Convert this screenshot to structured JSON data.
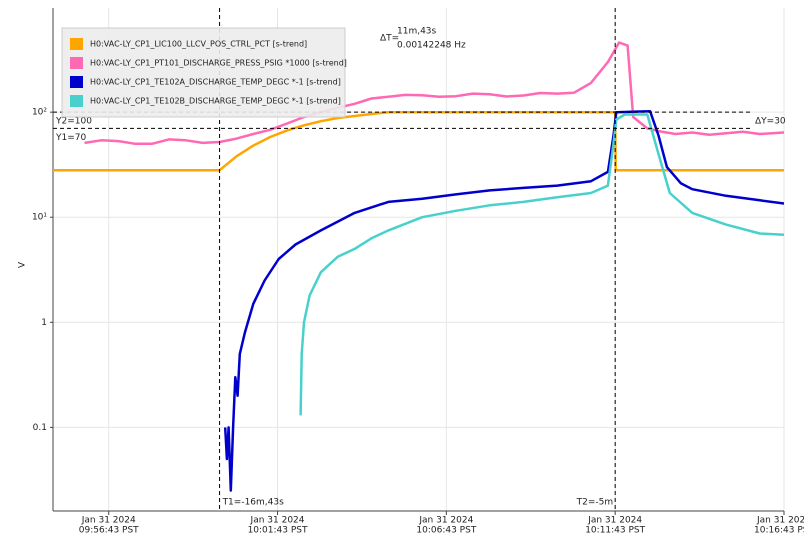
{
  "chart_data": {
    "type": "line",
    "y_label": "V",
    "log_y": true,
    "grid": true,
    "xlim": [
      "09:55:04",
      "10:16:43"
    ],
    "xticks": [
      {
        "value": "09:56:43",
        "label": [
          "Jan 31 2024",
          "09:56:43 PST"
        ]
      },
      {
        "value": "10:01:43",
        "label": [
          "Jan 31 2024",
          "10:01:43 PST"
        ]
      },
      {
        "value": "10:06:43",
        "label": [
          "Jan 31 2024",
          "10:06:43 PST"
        ]
      },
      {
        "value": "10:11:43",
        "label": [
          "Jan 31 2024",
          "10:11:43 PST"
        ]
      },
      {
        "value": "10:16:43",
        "label": [
          "Jan 31 2024",
          "10:16:43 PST"
        ]
      }
    ],
    "ylim": [
      0.016,
      980
    ],
    "yticks": [
      {
        "value": 100,
        "label": "10²"
      },
      {
        "value": 10,
        "label": "10¹"
      },
      1,
      0.1
    ],
    "series": [
      {
        "name": "H0:VAC-LY_CP1_LIC100_LLCV_POS_CTRL_PCT [s-trend]",
        "color": "#FFA500",
        "x": [
          "09:55:04",
          "10:00:00",
          "10:00:30",
          "10:01:00",
          "10:01:30",
          "10:02:00",
          "10:02:30",
          "10:03:00",
          "10:03:30",
          "10:04:00",
          "10:04:30",
          "10:05:00",
          "10:11:43",
          "10:11:44",
          "10:16:43"
        ],
        "values": [
          28,
          28,
          38,
          48,
          58,
          67,
          75,
          82,
          88,
          92,
          96,
          100,
          100,
          28,
          28
        ]
      },
      {
        "name": "H0:VAC-LY_CP1_PT101_DISCHARGE_PRESS_PSIG *1000 [s-trend]",
        "color": "#FF69B4",
        "x": [
          "09:56:00",
          "09:56:30",
          "09:57:00",
          "09:57:30",
          "09:58:00",
          "09:58:30",
          "09:59:00",
          "09:59:30",
          "10:00:00",
          "10:00:30",
          "10:01:00",
          "10:01:30",
          "10:02:00",
          "10:02:30",
          "10:03:00",
          "10:03:30",
          "10:04:00",
          "10:04:30",
          "10:05:00",
          "10:05:30",
          "10:06:00",
          "10:06:30",
          "10:07:00",
          "10:07:30",
          "10:08:00",
          "10:08:30",
          "10:09:00",
          "10:09:30",
          "10:10:00",
          "10:10:30",
          "10:11:00",
          "10:11:30",
          "10:11:50",
          "10:12:05",
          "10:12:15",
          "10:12:40",
          "10:13:00",
          "10:13:30",
          "10:14:00",
          "10:14:30",
          "10:15:00",
          "10:15:30",
          "10:16:00",
          "10:16:43"
        ],
        "values": [
          51,
          54,
          53,
          50,
          50,
          55,
          54,
          51,
          52,
          56,
          62,
          68,
          78,
          90,
          100,
          110,
          120,
          135,
          140,
          146,
          145,
          140,
          142,
          150,
          148,
          141,
          144,
          152,
          150,
          153,
          190,
          300,
          460,
          430,
          90,
          70,
          66,
          62,
          64,
          61,
          63,
          65,
          62,
          64
        ]
      },
      {
        "name": "H0:VAC-LY_CP1_TE102A_DISCHARGE_TEMP_DEGC *-1 [s-trend]",
        "color": "#0000CD",
        "x": [
          "10:00:10",
          "10:00:13",
          "10:00:16",
          "10:00:20",
          "10:00:24",
          "10:00:28",
          "10:00:32",
          "10:00:36",
          "10:00:45",
          "10:01:00",
          "10:01:20",
          "10:01:45",
          "10:02:15",
          "10:03:00",
          "10:04:00",
          "10:05:00",
          "10:06:00",
          "10:07:00",
          "10:08:00",
          "10:09:00",
          "10:10:00",
          "10:11:00",
          "10:11:30",
          "10:11:40",
          "10:11:45",
          "10:12:45",
          "10:13:00",
          "10:13:15",
          "10:13:40",
          "10:14:00",
          "10:15:00",
          "10:16:00",
          "10:16:43"
        ],
        "values": [
          0.1,
          0.05,
          0.1,
          0.025,
          0.1,
          0.3,
          0.2,
          0.5,
          0.8,
          1.5,
          2.5,
          4,
          5.5,
          7.5,
          11,
          14,
          15,
          16.5,
          18,
          19,
          20,
          22,
          27,
          60,
          100,
          102,
          60,
          30,
          21,
          18.5,
          16,
          14.5,
          13.5
        ]
      },
      {
        "name": "H0:VAC-LY_CP1_TE102B_DISCHARGE_TEMP_DEGC *-1 [s-trend]",
        "color": "#48D1CC",
        "x": [
          "10:02:24",
          "10:02:26",
          "10:02:30",
          "10:02:40",
          "10:03:00",
          "10:03:30",
          "10:04:00",
          "10:04:30",
          "10:05:00",
          "10:06:00",
          "10:07:00",
          "10:08:00",
          "10:09:00",
          "10:10:00",
          "10:11:00",
          "10:11:30",
          "10:11:40",
          "10:11:45",
          "10:12:00",
          "10:12:40",
          "10:13:00",
          "10:13:20",
          "10:14:00",
          "10:15:00",
          "10:16:00",
          "10:16:43"
        ],
        "values": [
          0.13,
          0.5,
          1.0,
          1.8,
          3,
          4.2,
          5,
          6.3,
          7.5,
          10,
          11.5,
          13,
          14,
          15.5,
          17,
          20,
          50,
          85,
          95,
          95,
          40,
          17,
          11,
          8.5,
          7,
          6.8
        ]
      }
    ],
    "legend": "upper left",
    "cursors": {
      "t1": {
        "x": "10:00:00",
        "label": "T1=-16m,43s"
      },
      "t2": {
        "x": "10:11:43",
        "label": "T2=-5m"
      },
      "y1": {
        "value": 70,
        "label": "Y1=70"
      },
      "y2": {
        "value": 100,
        "label": "Y2=100"
      },
      "delta_y": "ΔY=30",
      "delta_t": [
        "ΔT=",
        "11m,43s",
        "0.00142248 Hz"
      ]
    }
  }
}
